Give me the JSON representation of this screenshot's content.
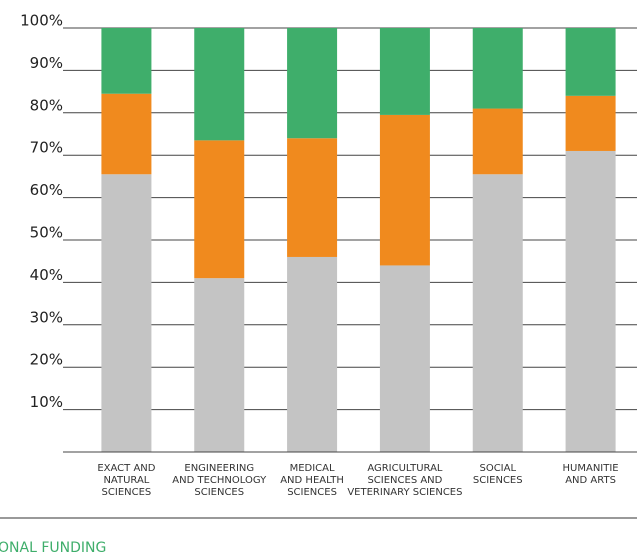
{
  "chart_data": {
    "type": "stacked_bar",
    "categories": [
      [
        "EXACT AND",
        "NATURAL",
        "SCIENCES"
      ],
      [
        "ENGINEERING",
        "AND TECHNOLOGY",
        "SCIENCES"
      ],
      [
        "MEDICAL",
        "AND HEALTH",
        "SCIENCES"
      ],
      [
        "AGRICULTURAL",
        "SCIENCES AND",
        "VETERINARY SCIENCES"
      ],
      [
        "SOCIAL",
        "SCIENCES"
      ],
      [
        "HUMANITIE",
        "AND ARTS"
      ]
    ],
    "series": [
      {
        "color": "#c4c4c4",
        "values": [
          65.5,
          41,
          46,
          44,
          65.5,
          71
        ]
      },
      {
        "color": "#f08a1e",
        "values": [
          19,
          32.5,
          28,
          35.5,
          15.5,
          13
        ]
      },
      {
        "color": "#3fae6b",
        "values": [
          15.5,
          26.5,
          26,
          20.5,
          19,
          16
        ]
      }
    ],
    "ylim": [
      0,
      100
    ],
    "yticks": [
      {
        "value": 10,
        "label": "10%"
      },
      {
        "value": 20,
        "label": "20%"
      },
      {
        "value": 30,
        "label": "30%"
      },
      {
        "value": 40,
        "label": "40%"
      },
      {
        "value": 50,
        "label": "50%"
      },
      {
        "value": 60,
        "label": "60%"
      },
      {
        "value": 70,
        "label": "70%"
      },
      {
        "value": 80,
        "label": "80%"
      },
      {
        "value": 90,
        "label": "90%"
      },
      {
        "value": 100,
        "label": "100%"
      }
    ],
    "grid": true,
    "footer": "ONAL FUNDING"
  }
}
